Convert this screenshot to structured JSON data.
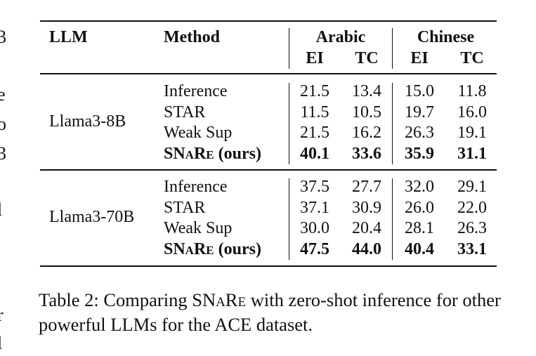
{
  "table": {
    "header": {
      "llm": "LLM",
      "method": "Method",
      "groups": [
        {
          "name": "Arabic",
          "columns": [
            "EI",
            "TC"
          ]
        },
        {
          "name": "Chinese",
          "columns": [
            "EI",
            "TC"
          ]
        }
      ]
    },
    "blocks": [
      {
        "llm": "Llama3-8B",
        "rows": [
          {
            "method": "Inference",
            "values": [
              "21.5",
              "13.4",
              "15.0",
              "11.8"
            ]
          },
          {
            "method": "STAR",
            "values": [
              "11.5",
              "10.5",
              "19.7",
              "16.0"
            ]
          },
          {
            "method": "Weak Sup",
            "values": [
              "21.5",
              "16.2",
              "26.3",
              "19.1"
            ]
          },
          {
            "method": "SNaRe",
            "method_suffix": " (ours)",
            "bold": true,
            "values": [
              "40.1",
              "33.6",
              "35.9",
              "31.1"
            ]
          }
        ]
      },
      {
        "llm": "Llama3-70B",
        "rows": [
          {
            "method": "Inference",
            "values": [
              "37.5",
              "27.7",
              "32.0",
              "29.1"
            ]
          },
          {
            "method": "STAR",
            "values": [
              "37.1",
              "30.9",
              "26.0",
              "22.0"
            ]
          },
          {
            "method": "Weak Sup",
            "values": [
              "30.0",
              "20.4",
              "28.1",
              "26.3"
            ]
          },
          {
            "method": "SNaRe",
            "method_suffix": " (ours)",
            "bold": true,
            "values": [
              "47.5",
              "44.0",
              "40.4",
              "33.1"
            ]
          }
        ]
      }
    ]
  },
  "caption": {
    "prefix": "Table 2: Comparing ",
    "name": "SNaRe",
    "rest": " with zero-shot inference for other powerful LLMs for the ACE dataset."
  },
  "margin_fragments": [
    "3",
    "e",
    "o",
    "3",
    "l",
    "r",
    "l"
  ]
}
